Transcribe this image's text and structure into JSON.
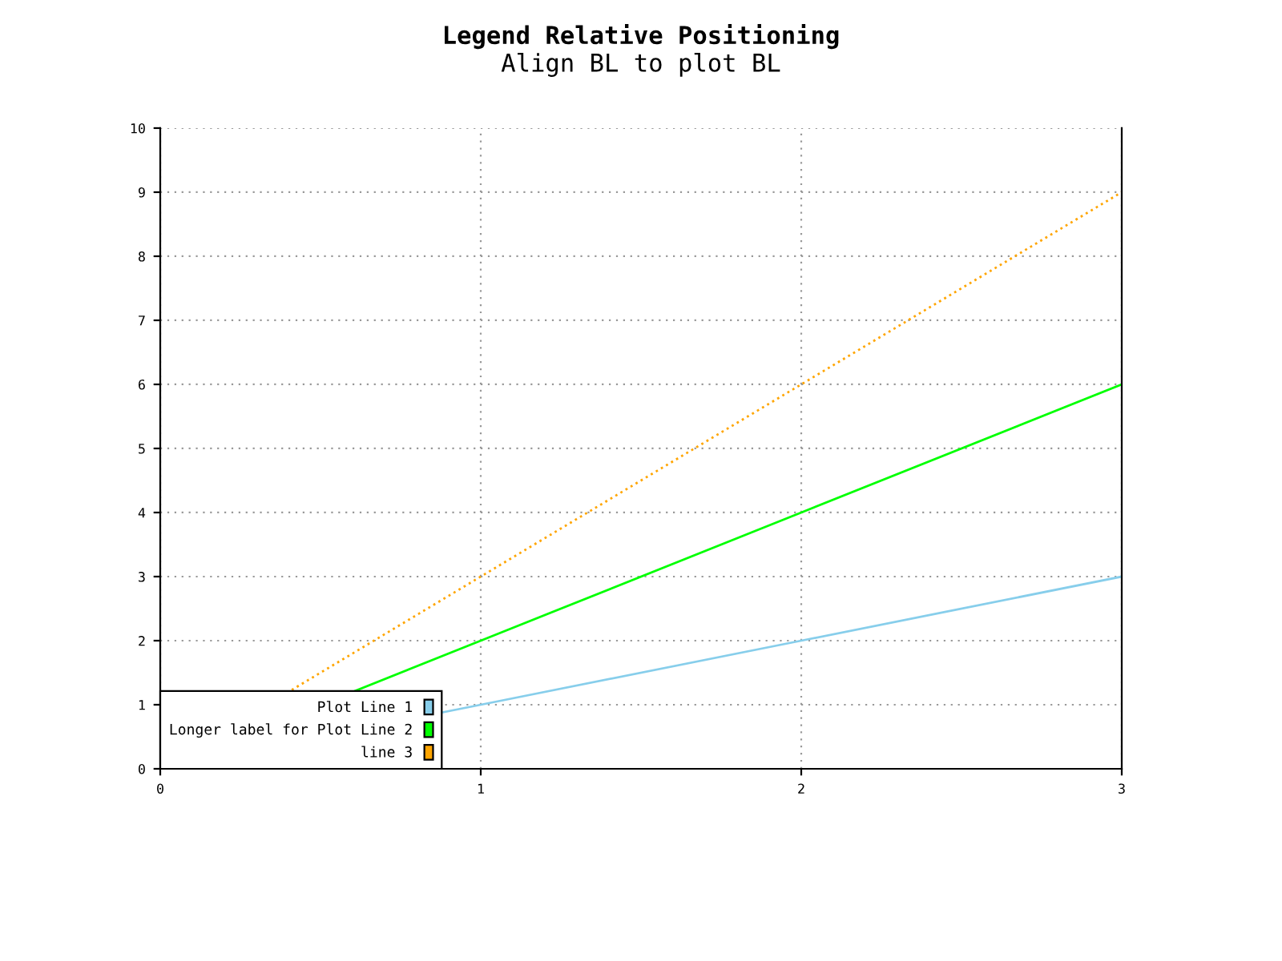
{
  "chart_data": {
    "type": "line",
    "title": "Legend Relative Positioning",
    "subtitle": "Align BL to plot BL",
    "x": [
      0,
      1,
      2,
      3
    ],
    "series": [
      {
        "name": "Plot Line 1",
        "color": "#87ceeb",
        "values": [
          0,
          1,
          2,
          3
        ]
      },
      {
        "name": "Longer label for Plot Line 2",
        "color": "#00ff00",
        "values": [
          0,
          2,
          4,
          6
        ]
      },
      {
        "name": "line 3",
        "color": "#ffa500",
        "values": [
          0,
          3,
          6,
          9
        ],
        "line_style": "dotted"
      }
    ],
    "xlim": [
      0,
      3
    ],
    "xticks": [
      0,
      1,
      2,
      3
    ],
    "ylim": [
      0,
      10
    ],
    "yticks": [
      0,
      1,
      2,
      3,
      4,
      5,
      6,
      7,
      8,
      9,
      10
    ],
    "grid": true,
    "legend": "bottom left",
    "line_style": "solid",
    "marker": "none"
  }
}
